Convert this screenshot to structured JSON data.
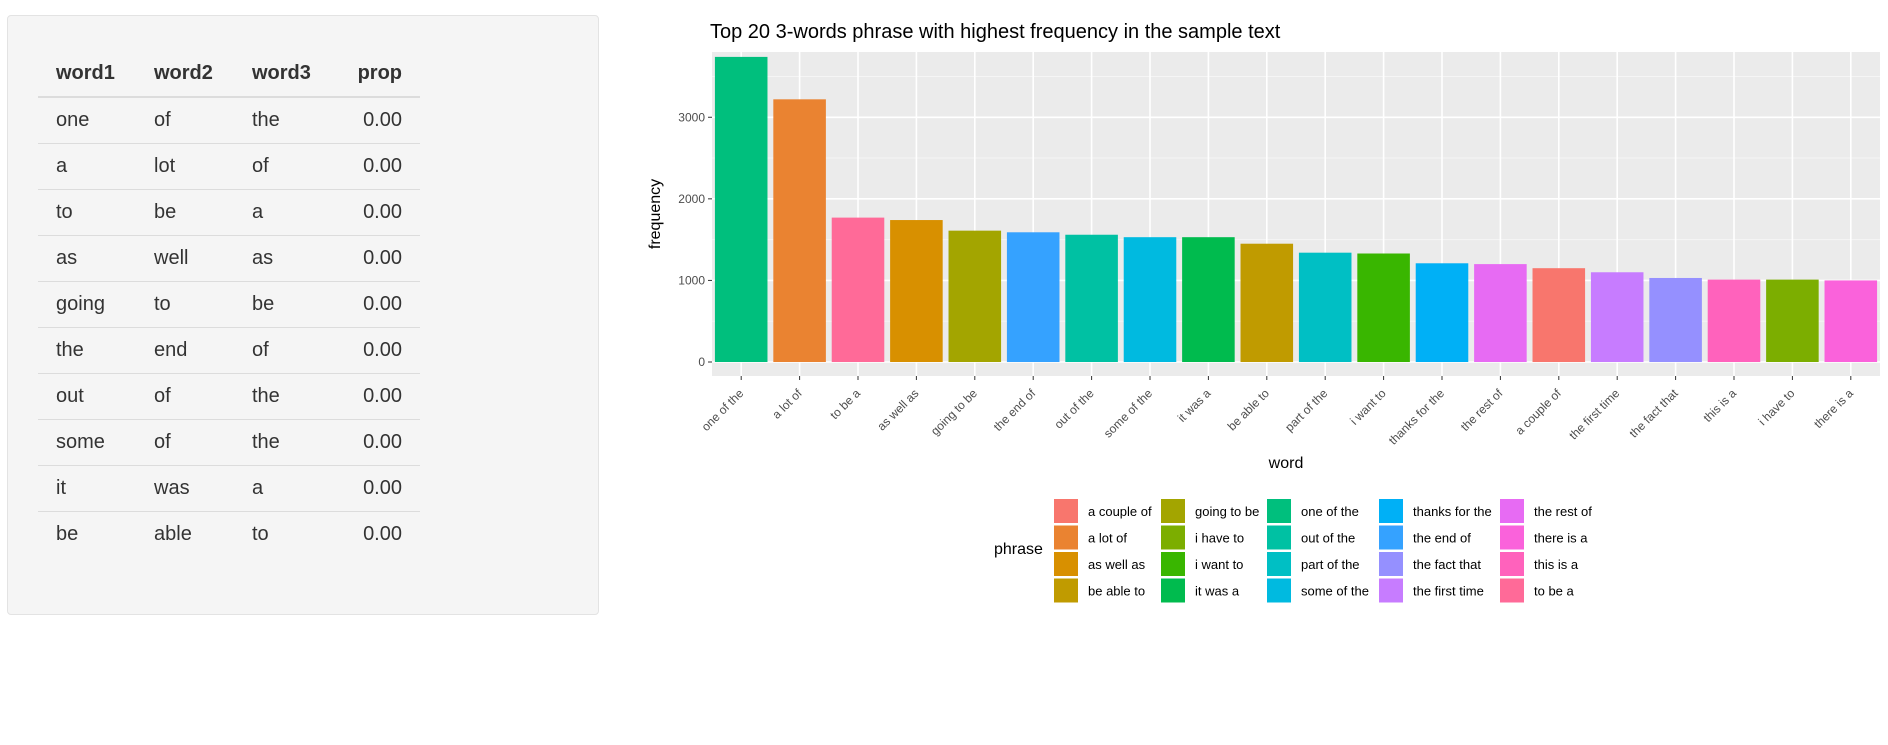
{
  "table": {
    "headers": [
      "word1",
      "word2",
      "word3",
      "prop"
    ],
    "rows": [
      [
        "one",
        "of",
        "the",
        "0.00"
      ],
      [
        "a",
        "lot",
        "of",
        "0.00"
      ],
      [
        "to",
        "be",
        "a",
        "0.00"
      ],
      [
        "as",
        "well",
        "as",
        "0.00"
      ],
      [
        "going",
        "to",
        "be",
        "0.00"
      ],
      [
        "the",
        "end",
        "of",
        "0.00"
      ],
      [
        "out",
        "of",
        "the",
        "0.00"
      ],
      [
        "some",
        "of",
        "the",
        "0.00"
      ],
      [
        "it",
        "was",
        "a",
        "0.00"
      ],
      [
        "be",
        "able",
        "to",
        "0.00"
      ]
    ]
  },
  "chart_data": {
    "type": "bar",
    "title": "Top 20 3-words phrase with highest frequency in the sample text",
    "xlabel": "word",
    "ylabel": "frequency",
    "ylim": [
      0,
      3800
    ],
    "yticks": [
      0,
      1000,
      2000,
      3000
    ],
    "grid": true,
    "legend_position": "bottom",
    "legend_title": "phrase",
    "categories": [
      "one of the",
      "a lot of",
      "to be a",
      "as well as",
      "going to be",
      "the end of",
      "out of the",
      "some of the",
      "it was a",
      "be able to",
      "part of the",
      "i want to",
      "thanks for the",
      "the rest of",
      "a couple of",
      "the first time",
      "the fact that",
      "this is a",
      "i have to",
      "there is a"
    ],
    "values": [
      3740,
      3220,
      1770,
      1740,
      1610,
      1590,
      1560,
      1530,
      1530,
      1450,
      1340,
      1330,
      1210,
      1200,
      1150,
      1100,
      1030,
      1010,
      1010,
      1000
    ],
    "legend_order": [
      "a couple of",
      "a lot of",
      "as well as",
      "be able to",
      "going to be",
      "i have to",
      "i want to",
      "it was a",
      "one of the",
      "out of the",
      "part of the",
      "some of the",
      "thanks for the",
      "the end of",
      "the fact that",
      "the first time",
      "the rest of",
      "there is a",
      "this is a",
      "to be a"
    ],
    "colors": {
      "a couple of": "#F8766D",
      "a lot of": "#EA8331",
      "as well as": "#D89000",
      "be able to": "#C09B00",
      "going to be": "#A3A500",
      "i have to": "#7CAE00",
      "i want to": "#39B600",
      "it was a": "#00BB4E",
      "one of the": "#00BF7D",
      "out of the": "#00C1A3",
      "part of the": "#00BFC4",
      "some of the": "#00BAE0",
      "thanks for the": "#00B0F6",
      "the end of": "#35A2FF",
      "the fact that": "#9590FF",
      "the first time": "#C77CFF",
      "the rest of": "#E76BF3",
      "there is a": "#FA62DB",
      "this is a": "#FF62BC",
      "to be a": "#FF6A98"
    }
  }
}
